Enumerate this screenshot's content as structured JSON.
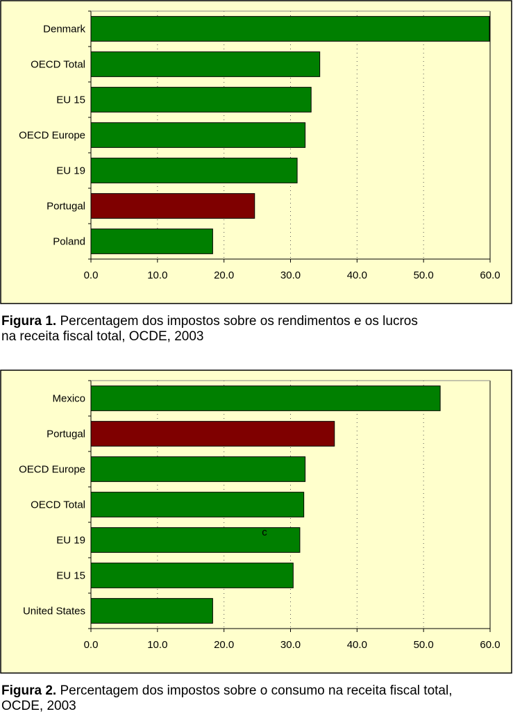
{
  "colors": {
    "panel_bg": "#ffffcc",
    "bar_default": "#007f00",
    "bar_highlight": "#7f0000",
    "frame": "#000000"
  },
  "chart_data": [
    {
      "type": "bar",
      "orientation": "horizontal",
      "categories": [
        "Denmark",
        "OECD Total",
        "EU 15",
        "OECD Europe",
        "EU 19",
        "Portugal",
        "Poland"
      ],
      "values": [
        59.9,
        34.4,
        33.1,
        32.2,
        31.0,
        24.6,
        18.3
      ],
      "highlight": "Portugal",
      "xlim": [
        0,
        60
      ],
      "xticks": [
        "0.0",
        "10.0",
        "20.0",
        "30.0",
        "40.0",
        "50.0",
        "60.0"
      ],
      "grid": "vertical dotted",
      "caption_label": "Figura 1.",
      "caption_line1": "Percentagem dos impostos sobre os rendimentos e os lucros",
      "caption_line2": "na receita fiscal total, OCDE, 2003"
    },
    {
      "type": "bar",
      "orientation": "horizontal",
      "categories": [
        "Mexico",
        "Portugal",
        "OECD Europe",
        "OECD Total",
        "EU 19",
        "EU 15",
        "United States"
      ],
      "values": [
        52.5,
        36.6,
        32.2,
        32.0,
        31.4,
        30.4,
        18.3
      ],
      "highlight": "Portugal",
      "xlim": [
        0,
        60
      ],
      "xticks": [
        "0.0",
        "10.0",
        "20.0",
        "30.0",
        "40.0",
        "50.0",
        "60.0"
      ],
      "grid": "vertical dotted",
      "annotation": "c",
      "caption_label": "Figura 2.",
      "caption_line1": "Percentagem dos impostos sobre o consumo na receita fiscal total,",
      "caption_line2": "OCDE, 2003"
    }
  ]
}
